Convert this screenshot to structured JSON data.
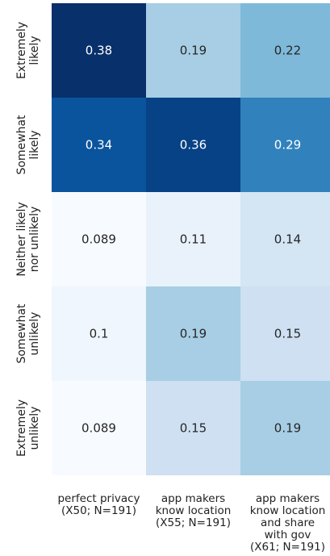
{
  "chart_data": {
    "type": "heatmap",
    "title": "",
    "xlabel": "",
    "ylabel": "",
    "columns": [
      [
        "perfect privacy",
        "(X50; N=191)"
      ],
      [
        "app makers",
        "know location",
        "(X55; N=191)"
      ],
      [
        "app makers",
        "know location",
        "and share",
        "with gov",
        "(X61; N=191)"
      ]
    ],
    "rows": [
      [
        "Extremely",
        "likely"
      ],
      [
        "Somewhat",
        "likely"
      ],
      [
        "Neither likely",
        "nor unlikely"
      ],
      [
        "Somewhat",
        "unlikely"
      ],
      [
        "Extremely",
        "unlikely"
      ]
    ],
    "values": [
      [
        0.38,
        0.19,
        0.22
      ],
      [
        0.34,
        0.36,
        0.29
      ],
      [
        0.089,
        0.11,
        0.14
      ],
      [
        0.1,
        0.19,
        0.15
      ],
      [
        0.089,
        0.15,
        0.19
      ]
    ],
    "cell_labels": [
      [
        "0.38",
        "0.19",
        "0.22"
      ],
      [
        "0.34",
        "0.36",
        "0.29"
      ],
      [
        "0.089",
        "0.11",
        "0.14"
      ],
      [
        "0.1",
        "0.19",
        "0.15"
      ],
      [
        "0.089",
        "0.15",
        "0.19"
      ]
    ],
    "colormap": "Blues",
    "colors": {
      "low": "#f7fbff",
      "high": "#08306b"
    },
    "legend": "none",
    "grid": false
  }
}
